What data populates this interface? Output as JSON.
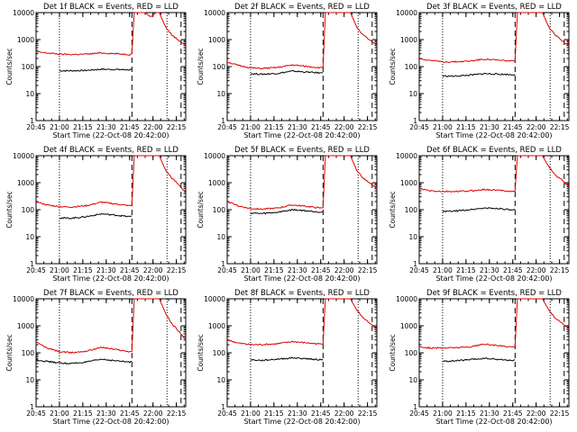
{
  "layout": {
    "rows": 3,
    "cols": 3
  },
  "colors": {
    "events": "#000000",
    "lld": "#e00000",
    "axes": "#000000",
    "background": "#ffffff"
  },
  "chart_data": [
    {
      "type": "line",
      "title": "Det 1f BLACK = Events, RED = LLD",
      "xlabel": "Start Time (22-Oct-08 20:42:00)",
      "ylabel": "Counts/sec",
      "xticks": [
        "20:45",
        "21:00",
        "21:15",
        "21:30",
        "21:45",
        "22:00",
        "22:15"
      ],
      "xlim": [
        3,
        99
      ],
      "ylim": [
        1,
        10000
      ],
      "yscale": "log",
      "yticks": [
        "1",
        "10",
        "100",
        "1000",
        "10000"
      ],
      "dotted_lines": [
        18,
        87
      ],
      "dashed_lines": [
        64.5,
        96
      ],
      "series": [
        {
          "name": "Events",
          "color": "#000000",
          "x": [
            18,
            25,
            35,
            45,
            55,
            63,
            64.5
          ],
          "y": [
            70,
            70,
            72,
            80,
            78,
            76,
            80
          ]
        },
        {
          "name": "LLD",
          "color": "#e00000",
          "x": [
            3,
            10,
            18,
            25,
            35,
            45,
            55,
            63,
            64.5,
            66,
            70,
            73,
            75,
            76.5,
            78,
            80,
            82,
            86,
            90,
            95,
            99
          ],
          "y": [
            350,
            320,
            290,
            280,
            290,
            320,
            300,
            280,
            300,
            10000,
            10000,
            10000,
            8000,
            7000,
            8000,
            10000,
            10000,
            3000,
            1500,
            900,
            600
          ]
        }
      ]
    },
    {
      "type": "line",
      "title": "Det 2f BLACK = Events, RED = LLD",
      "xlabel": "Start Time (22-Oct-08 20:42:00)",
      "ylabel": "Counts/sec",
      "xticks": [
        "20:45",
        "21:00",
        "21:15",
        "21:30",
        "21:45",
        "22:00",
        "22:15"
      ],
      "xlim": [
        3,
        99
      ],
      "ylim": [
        1,
        10000
      ],
      "yscale": "log",
      "yticks": [
        "1",
        "10",
        "100",
        "1000",
        "10000"
      ],
      "dotted_lines": [
        18,
        87
      ],
      "dashed_lines": [
        64.5,
        96
      ],
      "series": [
        {
          "name": "Events",
          "color": "#000000",
          "x": [
            18,
            25,
            35,
            45,
            55,
            63,
            64.5
          ],
          "y": [
            55,
            52,
            56,
            68,
            62,
            58,
            60
          ]
        },
        {
          "name": "LLD",
          "color": "#e00000",
          "x": [
            3,
            10,
            18,
            25,
            35,
            45,
            55,
            63,
            64.5,
            66,
            70,
            74,
            78,
            82,
            86,
            90,
            95,
            99
          ],
          "y": [
            150,
            110,
            90,
            85,
            92,
            115,
            100,
            90,
            95,
            10000,
            10000,
            10000,
            10000,
            10000,
            3000,
            1500,
            900,
            600
          ]
        }
      ]
    },
    {
      "type": "line",
      "title": "Det 3f BLACK = Events, RED = LLD",
      "xlabel": "Start Time (22-Oct-08 20:42:00)",
      "ylabel": "Counts/sec",
      "xticks": [
        "20:45",
        "21:00",
        "21:15",
        "21:30",
        "21:45",
        "22:00",
        "22:15"
      ],
      "xlim": [
        3,
        99
      ],
      "ylim": [
        1,
        10000
      ],
      "yscale": "log",
      "yticks": [
        "1",
        "10",
        "100",
        "1000",
        "10000"
      ],
      "dotted_lines": [
        18,
        87
      ],
      "dashed_lines": [
        64.5,
        96
      ],
      "series": [
        {
          "name": "Events",
          "color": "#000000",
          "x": [
            18,
            25,
            35,
            45,
            55,
            63,
            64.5
          ],
          "y": [
            45,
            44,
            48,
            55,
            52,
            50,
            52
          ]
        },
        {
          "name": "LLD",
          "color": "#e00000",
          "x": [
            3,
            10,
            18,
            25,
            35,
            45,
            55,
            63,
            64.5,
            66,
            70,
            74,
            78,
            82,
            86,
            90,
            95,
            99
          ],
          "y": [
            200,
            170,
            150,
            150,
            160,
            190,
            170,
            160,
            165,
            10000,
            10000,
            10000,
            10000,
            10000,
            3000,
            1500,
            900,
            600
          ]
        }
      ]
    },
    {
      "type": "line",
      "title": "Det 4f BLACK = Events, RED = LLD",
      "xlabel": "Start Time (22-Oct-08 20:42:00)",
      "ylabel": "Counts/sec",
      "xticks": [
        "20:45",
        "21:00",
        "21:15",
        "21:30",
        "21:45",
        "22:00",
        "22:15"
      ],
      "xlim": [
        3,
        99
      ],
      "ylim": [
        1,
        10000
      ],
      "yscale": "log",
      "yticks": [
        "1",
        "10",
        "100",
        "1000",
        "10000"
      ],
      "dotted_lines": [
        18,
        87
      ],
      "dashed_lines": [
        64.5,
        96
      ],
      "series": [
        {
          "name": "Events",
          "color": "#000000",
          "x": [
            18,
            25,
            35,
            45,
            55,
            63,
            64.5
          ],
          "y": [
            50,
            48,
            55,
            70,
            62,
            55,
            58
          ]
        },
        {
          "name": "LLD",
          "color": "#e00000",
          "x": [
            3,
            10,
            18,
            25,
            35,
            45,
            55,
            63,
            64.5,
            66,
            70,
            74,
            78,
            82,
            86,
            90,
            95,
            99
          ],
          "y": [
            200,
            150,
            130,
            125,
            140,
            190,
            160,
            140,
            145,
            10000,
            10000,
            10000,
            10000,
            10000,
            3000,
            1500,
            800,
            400
          ]
        }
      ]
    },
    {
      "type": "line",
      "title": "Det 5f BLACK = Events, RED = LLD",
      "xlabel": "Start Time (22-Oct-08 20:42:00)",
      "ylabel": "Counts/sec",
      "xticks": [
        "20:45",
        "21:00",
        "21:15",
        "21:30",
        "21:45",
        "22:00",
        "22:15"
      ],
      "xlim": [
        3,
        99
      ],
      "ylim": [
        1,
        10000
      ],
      "yscale": "log",
      "yticks": [
        "1",
        "10",
        "100",
        "1000",
        "10000"
      ],
      "dotted_lines": [
        18,
        87
      ],
      "dashed_lines": [
        64.5,
        96
      ],
      "series": [
        {
          "name": "Events",
          "color": "#000000",
          "x": [
            18,
            25,
            35,
            45,
            55,
            63,
            64.5
          ],
          "y": [
            75,
            72,
            80,
            100,
            90,
            82,
            85
          ]
        },
        {
          "name": "LLD",
          "color": "#e00000",
          "x": [
            3,
            10,
            18,
            25,
            35,
            45,
            55,
            63,
            64.5,
            66,
            70,
            74,
            78,
            82,
            86,
            90,
            95,
            99
          ],
          "y": [
            200,
            140,
            110,
            105,
            115,
            150,
            130,
            115,
            120,
            10000,
            10000,
            10000,
            10000,
            10000,
            3000,
            1500,
            900,
            600
          ]
        }
      ]
    },
    {
      "type": "line",
      "title": "Det 6f BLACK = Events, RED = LLD",
      "xlabel": "Start Time (22-Oct-08 20:42:00)",
      "ylabel": "Counts/sec",
      "xticks": [
        "20:45",
        "21:00",
        "21:15",
        "21:30",
        "21:45",
        "22:00",
        "22:15"
      ],
      "xlim": [
        3,
        99
      ],
      "ylim": [
        1,
        10000
      ],
      "yscale": "log",
      "yticks": [
        "1",
        "10",
        "100",
        "1000",
        "10000"
      ],
      "dotted_lines": [
        18,
        87
      ],
      "dashed_lines": [
        64.5,
        96
      ],
      "series": [
        {
          "name": "Events",
          "color": "#000000",
          "x": [
            18,
            25,
            35,
            45,
            55,
            63,
            64.5
          ],
          "y": [
            85,
            88,
            100,
            115,
            110,
            95,
            100
          ]
        },
        {
          "name": "LLD",
          "color": "#e00000",
          "x": [
            3,
            10,
            18,
            25,
            35,
            45,
            55,
            63,
            64.5,
            66,
            70,
            74,
            78,
            82,
            86,
            90,
            95,
            99
          ],
          "y": [
            600,
            500,
            470,
            470,
            490,
            560,
            520,
            480,
            490,
            10000,
            10000,
            10000,
            10000,
            10000,
            4000,
            2000,
            1200,
            700
          ]
        }
      ]
    },
    {
      "type": "line",
      "title": "Det 7f BLACK = Events, RED = LLD",
      "xlabel": "Start Time (22-Oct-08 20:42:00)",
      "ylabel": "Counts/sec",
      "xticks": [
        "20:45",
        "21:00",
        "21:15",
        "21:30",
        "21:45",
        "22:00",
        "22:15"
      ],
      "xlim": [
        3,
        99
      ],
      "ylim": [
        1,
        10000
      ],
      "yscale": "log",
      "yticks": [
        "1",
        "10",
        "100",
        "1000",
        "10000"
      ],
      "dotted_lines": [
        18,
        87
      ],
      "dashed_lines": [
        64.5,
        96
      ],
      "series": [
        {
          "name": "Events",
          "color": "#000000",
          "x": [
            3,
            10,
            18,
            25,
            35,
            45,
            55,
            63,
            64.5
          ],
          "y": [
            55,
            48,
            42,
            40,
            45,
            58,
            50,
            45,
            48
          ]
        },
        {
          "name": "LLD",
          "color": "#e00000",
          "x": [
            3,
            10,
            18,
            25,
            35,
            45,
            55,
            63,
            64.5,
            66,
            70,
            74,
            78,
            82,
            86,
            90,
            95,
            99
          ],
          "y": [
            250,
            150,
            110,
            100,
            115,
            160,
            130,
            110,
            115,
            10000,
            10000,
            10000,
            10000,
            10000,
            3000,
            1200,
            600,
            300
          ]
        }
      ]
    },
    {
      "type": "line",
      "title": "Det 8f BLACK = Events, RED = LLD",
      "xlabel": "Start Time (22-Oct-08 20:42:00)",
      "ylabel": "Counts/sec",
      "xticks": [
        "20:45",
        "21:00",
        "21:15",
        "21:30",
        "21:45",
        "22:00",
        "22:15"
      ],
      "xlim": [
        3,
        99
      ],
      "ylim": [
        1,
        10000
      ],
      "yscale": "log",
      "yticks": [
        "1",
        "10",
        "100",
        "1000",
        "10000"
      ],
      "dotted_lines": [
        18,
        87
      ],
      "dashed_lines": [
        64.5,
        96
      ],
      "series": [
        {
          "name": "Events",
          "color": "#000000",
          "x": [
            18,
            25,
            35,
            45,
            55,
            63,
            64.5
          ],
          "y": [
            55,
            52,
            58,
            65,
            60,
            55,
            58
          ]
        },
        {
          "name": "LLD",
          "color": "#e00000",
          "x": [
            3,
            10,
            18,
            25,
            35,
            45,
            55,
            63,
            64.5,
            66,
            70,
            74,
            78,
            82,
            86,
            90,
            95,
            99
          ],
          "y": [
            300,
            230,
            200,
            200,
            215,
            260,
            230,
            210,
            215,
            10000,
            10000,
            10000,
            10000,
            10000,
            4000,
            2000,
            1200,
            700
          ]
        }
      ]
    },
    {
      "type": "line",
      "title": "Det 9f BLACK = Events, RED = LLD",
      "xlabel": "Start Time (22-Oct-08 20:42:00)",
      "ylabel": "Counts/sec",
      "xticks": [
        "20:45",
        "21:00",
        "21:15",
        "21:30",
        "21:45",
        "22:00",
        "22:15"
      ],
      "xlim": [
        3,
        99
      ],
      "ylim": [
        1,
        10000
      ],
      "yscale": "log",
      "yticks": [
        "1",
        "10",
        "100",
        "1000",
        "10000"
      ],
      "dotted_lines": [
        18,
        87
      ],
      "dashed_lines": [
        64.5,
        96
      ],
      "series": [
        {
          "name": "Events",
          "color": "#000000",
          "x": [
            18,
            25,
            35,
            45,
            55,
            63,
            64.5
          ],
          "y": [
            48,
            50,
            55,
            62,
            56,
            52,
            54
          ]
        },
        {
          "name": "LLD",
          "color": "#e00000",
          "x": [
            3,
            10,
            18,
            25,
            35,
            45,
            55,
            63,
            64.5,
            66,
            70,
            74,
            78,
            82,
            86,
            90,
            95,
            99
          ],
          "y": [
            170,
            150,
            150,
            155,
            165,
            210,
            180,
            165,
            170,
            10000,
            10000,
            10000,
            10000,
            10000,
            4000,
            2000,
            1200,
            800
          ]
        }
      ]
    }
  ]
}
